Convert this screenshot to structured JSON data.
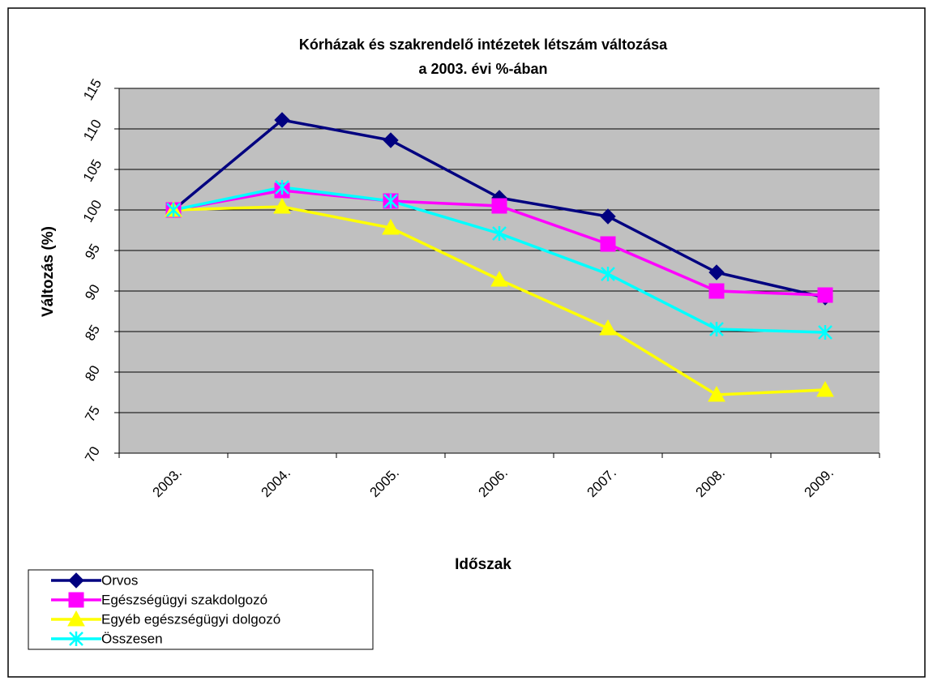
{
  "chart_data": {
    "type": "line",
    "title": [
      "Kórházak és szakrendelő intézetek létszám változása",
      "a 2003. évi %-ában"
    ],
    "xlabel": "Időszak",
    "ylabel": "Változás (%)",
    "categories": [
      "2003.",
      "2004.",
      "2005.",
      "2006.",
      "2007.",
      "2008.",
      "2009."
    ],
    "series": [
      {
        "name": "Orvos",
        "color": "#000080",
        "marker": "diamond",
        "values": [
          100,
          111.1,
          108.6,
          101.5,
          99.2,
          92.3,
          89.2
        ]
      },
      {
        "name": "Egészségügyi szakdolgozó",
        "color": "#ff00ff",
        "marker": "square",
        "values": [
          100,
          102.4,
          101.1,
          100.5,
          95.8,
          90,
          89.5
        ]
      },
      {
        "name": "Egyéb egészségügyi dolgozó",
        "color": "#ffff00",
        "marker": "triangle",
        "values": [
          100,
          100.4,
          97.8,
          91.4,
          85.4,
          77.2,
          77.8
        ]
      },
      {
        "name": "Összesen",
        "color": "#00ffff",
        "marker": "star",
        "values": [
          100,
          102.8,
          101.1,
          97.1,
          92.1,
          85.3,
          84.9
        ]
      }
    ],
    "ylim": [
      70,
      115
    ],
    "yticks": [
      70,
      75,
      80,
      85,
      90,
      95,
      100,
      105,
      110,
      115
    ],
    "grid": true,
    "plot_background": "#c0c0c0",
    "legend": "lower left"
  }
}
